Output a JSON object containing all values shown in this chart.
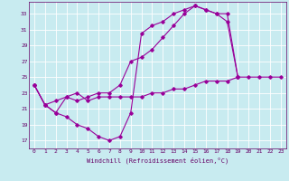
{
  "xlabel": "Windchill (Refroidissement éolien,°C)",
  "bg_color": "#c8ebf0",
  "grid_color": "#aad4dc",
  "line_color": "#990099",
  "text_color": "#660066",
  "xlim": [
    -0.5,
    23.5
  ],
  "ylim": [
    16.0,
    34.5
  ],
  "yticks": [
    17,
    19,
    21,
    23,
    25,
    27,
    29,
    31,
    33
  ],
  "xticks": [
    0,
    1,
    2,
    3,
    4,
    5,
    6,
    7,
    8,
    9,
    10,
    11,
    12,
    13,
    14,
    15,
    16,
    17,
    18,
    19,
    20,
    21,
    22,
    23
  ],
  "curve1_x": [
    0,
    1,
    2,
    3,
    4,
    5,
    6,
    7,
    8,
    9,
    10,
    11,
    12,
    13,
    14,
    15,
    16,
    17,
    18,
    19
  ],
  "curve1_y": [
    24.0,
    21.5,
    20.5,
    20.0,
    19.0,
    18.5,
    17.5,
    17.0,
    17.5,
    20.5,
    30.5,
    31.5,
    32.0,
    33.0,
    33.5,
    34.0,
    33.5,
    33.0,
    33.0,
    25.0
  ],
  "curve2_x": [
    0,
    1,
    2,
    3,
    4,
    5,
    6,
    7,
    8,
    9,
    10,
    11,
    12,
    13,
    14,
    15,
    16,
    17,
    18,
    19
  ],
  "curve2_y": [
    24.0,
    21.5,
    20.5,
    22.5,
    22.0,
    22.5,
    23.0,
    23.0,
    24.0,
    27.0,
    27.5,
    28.5,
    30.0,
    31.5,
    33.0,
    34.0,
    33.5,
    33.0,
    32.0,
    25.0
  ],
  "curve3_x": [
    0,
    1,
    2,
    3,
    4,
    5,
    6,
    7,
    8,
    9,
    10,
    11,
    12,
    13,
    14,
    15,
    16,
    17,
    18,
    19,
    20,
    21,
    22,
    23
  ],
  "curve3_y": [
    24.0,
    21.5,
    22.0,
    22.5,
    23.0,
    22.0,
    22.5,
    22.5,
    22.5,
    22.5,
    22.5,
    23.0,
    23.0,
    23.5,
    23.5,
    24.0,
    24.5,
    24.5,
    24.5,
    25.0,
    25.0,
    25.0,
    25.0,
    25.0
  ]
}
